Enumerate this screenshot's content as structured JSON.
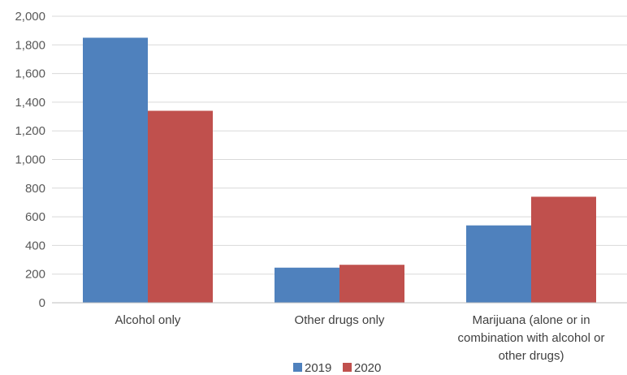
{
  "chart_data": {
    "type": "bar",
    "categories": [
      [
        "Alcohol only"
      ],
      [
        "Other drugs only"
      ],
      [
        "Marijuana (alone or in",
        "combination with alcohol or",
        "other drugs)"
      ]
    ],
    "series": [
      {
        "name": "2019",
        "color": "#4f81bd",
        "values": [
          1850,
          245,
          540
        ]
      },
      {
        "name": "2020",
        "color": "#c0504d",
        "values": [
          1340,
          265,
          740
        ]
      }
    ],
    "ylim": [
      0,
      2000
    ],
    "yticks": [
      {
        "value": 0,
        "label": "0"
      },
      {
        "value": 200,
        "label": "200"
      },
      {
        "value": 400,
        "label": "400"
      },
      {
        "value": 600,
        "label": "600"
      },
      {
        "value": 800,
        "label": "800"
      },
      {
        "value": 1000,
        "label": "1,000"
      },
      {
        "value": 1200,
        "label": "1,200"
      },
      {
        "value": 1400,
        "label": "1,400"
      },
      {
        "value": 1600,
        "label": "1,600"
      },
      {
        "value": 1800,
        "label": "1,800"
      },
      {
        "value": 2000,
        "label": "2,000"
      }
    ],
    "grid": true,
    "legend_position": "bottom",
    "title": "",
    "xlabel": "",
    "ylabel": ""
  }
}
